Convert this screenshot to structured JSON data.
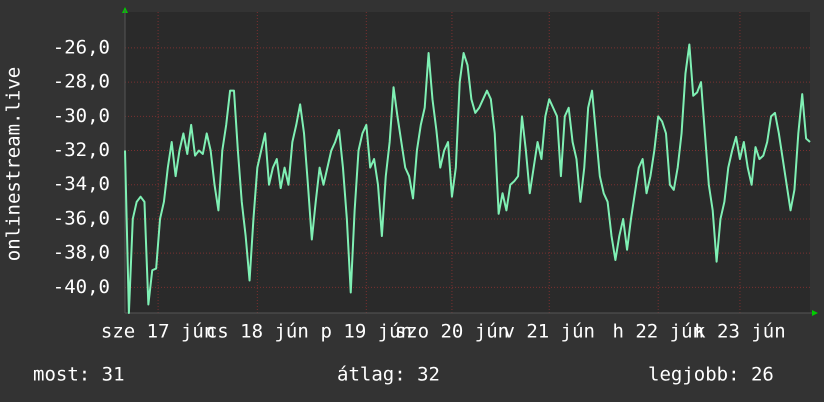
{
  "chart_data": {
    "type": "line",
    "ylabel": "onlinestream.live",
    "color": "#7ff0b4",
    "grid": true,
    "ylim": [
      -41.5,
      -23.9
    ],
    "yticks": [
      {
        "value": -26,
        "label": "-26,0"
      },
      {
        "value": -28,
        "label": "-28,0"
      },
      {
        "value": -30,
        "label": "-30,0"
      },
      {
        "value": -32,
        "label": "-32,0"
      },
      {
        "value": -34,
        "label": "-34,0"
      },
      {
        "value": -36,
        "label": "-36,0"
      },
      {
        "value": -38,
        "label": "-38,0"
      },
      {
        "value": -40,
        "label": "-40,0"
      }
    ],
    "xlim": [
      0,
      176
    ],
    "xticks": [
      {
        "value": 8.5,
        "label": "sze 17 jún"
      },
      {
        "value": 34,
        "label": "cs 18 jún"
      },
      {
        "value": 62,
        "label": "p 19 jún"
      },
      {
        "value": 84,
        "label": "szo 20 jún"
      },
      {
        "value": 109,
        "label": "v 21 jún"
      },
      {
        "value": 137,
        "label": "h 22 jún"
      },
      {
        "value": 158,
        "label": "k 23 jún"
      }
    ],
    "values": [
      -32,
      -41.5,
      -36,
      -35,
      -34.7,
      -35,
      -41,
      -39,
      -38.9,
      -36,
      -35,
      -33,
      -31.5,
      -33.5,
      -32,
      -31,
      -32.2,
      -30.5,
      -32.3,
      -32,
      -32.2,
      -31,
      -32,
      -34,
      -35.5,
      -32,
      -30.5,
      -28.5,
      -28.5,
      -32,
      -35,
      -37,
      -39.6,
      -36,
      -33,
      -32,
      -31,
      -34,
      -33,
      -32.5,
      -34.2,
      -33,
      -34,
      -31.5,
      -30.5,
      -29.3,
      -31,
      -34,
      -37.2,
      -35,
      -33,
      -34,
      -33,
      -32,
      -31.5,
      -30.8,
      -33,
      -36,
      -40.3,
      -35.5,
      -32,
      -31,
      -30.5,
      -33,
      -32.5,
      -34,
      -37,
      -33.5,
      -31.5,
      -28.3,
      -30,
      -31.5,
      -33,
      -33.5,
      -34.8,
      -32,
      -30.5,
      -29.5,
      -26.3,
      -29,
      -30.8,
      -33,
      -32,
      -31.5,
      -34.7,
      -33,
      -28,
      -26.3,
      -27,
      -29,
      -29.8,
      -29.5,
      -29,
      -28.5,
      -29,
      -31,
      -35.7,
      -34.5,
      -35.5,
      -34,
      -33.8,
      -33.5,
      -30,
      -32,
      -34.5,
      -33,
      -31.5,
      -32.5,
      -30,
      -29,
      -29.5,
      -30,
      -33.5,
      -30,
      -29.5,
      -31.5,
      -32.5,
      -35,
      -33,
      -29.5,
      -28.5,
      -31,
      -33.5,
      -34.5,
      -35,
      -37,
      -38.4,
      -37,
      -36,
      -37.8,
      -36,
      -34.5,
      -33,
      -32.5,
      -34.5,
      -33.5,
      -32,
      -30,
      -30.3,
      -31,
      -34,
      -34.3,
      -33,
      -31,
      -27.5,
      -25.8,
      -28.8,
      -28.6,
      -28,
      -31,
      -34,
      -35.5,
      -38.5,
      -36,
      -35,
      -33,
      -32,
      -31.2,
      -32.5,
      -31.5,
      -33,
      -34,
      -31.8,
      -32.5,
      -32.3,
      -31.5,
      -30,
      -29.8,
      -31,
      -32.5,
      -34,
      -35.5,
      -34.3,
      -31,
      -28.7,
      -31.3,
      -31.5
    ],
    "stats": [
      "most: 31",
      "átlag: 32",
      "legjobb: 26"
    ]
  }
}
